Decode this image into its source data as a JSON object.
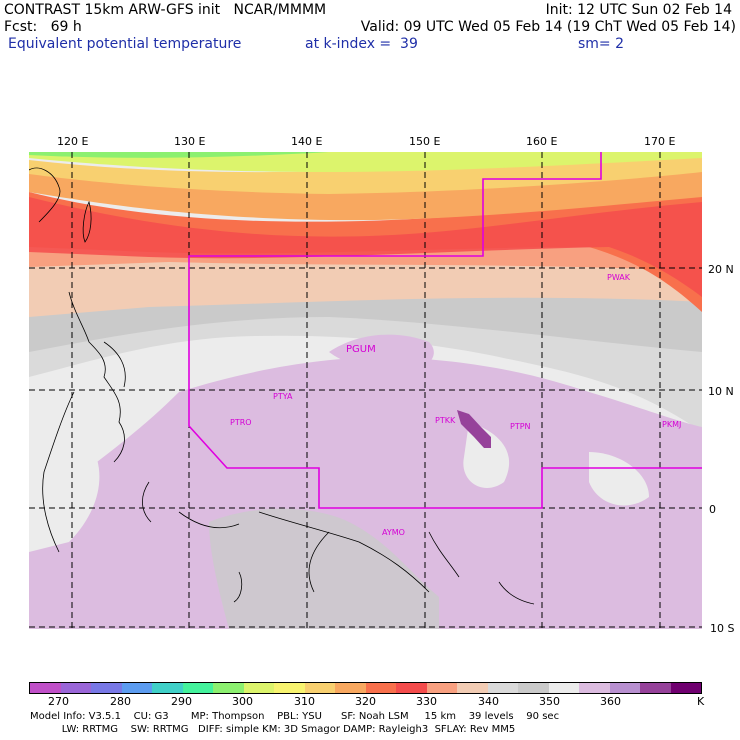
{
  "header": {
    "line1_left": "CONTRAST 15km ARW-GFS init   NCAR/MMMM",
    "line1_right": "Init: 12 UTC Sun 02 Feb 14",
    "line2_left": "Fcst:   69 h",
    "line2_right": "Valid: 09 UTC Wed 05 Feb 14 (19 ChT Wed 05 Feb 14)",
    "line3_field": "Equivalent potential temperature",
    "line3_level": "at k-index =  39",
    "line3_sm": "sm= 2"
  },
  "axes": {
    "lon_labels": [
      "120 E",
      "130 E",
      "140 E",
      "150 E",
      "160 E",
      "170 E"
    ],
    "lat_labels": [
      "20 N",
      "10 N",
      "0",
      "10 S"
    ]
  },
  "stations": [
    {
      "id": "PWAK",
      "name": "PWAK"
    },
    {
      "id": "PGUM",
      "name": "PGUM"
    },
    {
      "id": "PTYA",
      "name": "PTYA"
    },
    {
      "id": "PTRO",
      "name": "PTRO"
    },
    {
      "id": "PTKK",
      "name": "PTKK"
    },
    {
      "id": "PTPN",
      "name": "PTPN"
    },
    {
      "id": "PKMJ",
      "name": "PKMJ"
    },
    {
      "id": "AYMO",
      "name": "AYMO"
    }
  ],
  "colorbar": {
    "unit": "K",
    "tick_labels": [
      "270",
      "280",
      "290",
      "300",
      "310",
      "320",
      "330",
      "340",
      "350",
      "360"
    ],
    "colors": [
      "#c050c8",
      "#9a66d8",
      "#7878e6",
      "#5c9cf0",
      "#40d0c8",
      "#44f29c",
      "#8cf070",
      "#dcf46c",
      "#f8f470",
      "#f8d070",
      "#f8a860",
      "#f8704c",
      "#f44c4c",
      "#f8a080",
      "#f2ccb4",
      "#dadada",
      "#cacaca",
      "#ececec",
      "#dcbce0",
      "#b890d0",
      "#96429a",
      "#700070"
    ]
  },
  "footer": {
    "line1": "Model Info: V3.5.1    CU: G3       MP: Thompson    PBL: YSU      SF: Noah LSM     15 km    39 levels    90 sec",
    "line2": "          LW: RRTMG    SW: RRTMG   DIFF: simple KM: 3D Smagor DAMP: Rayleigh3  SFLAY: Rev MM5"
  }
}
